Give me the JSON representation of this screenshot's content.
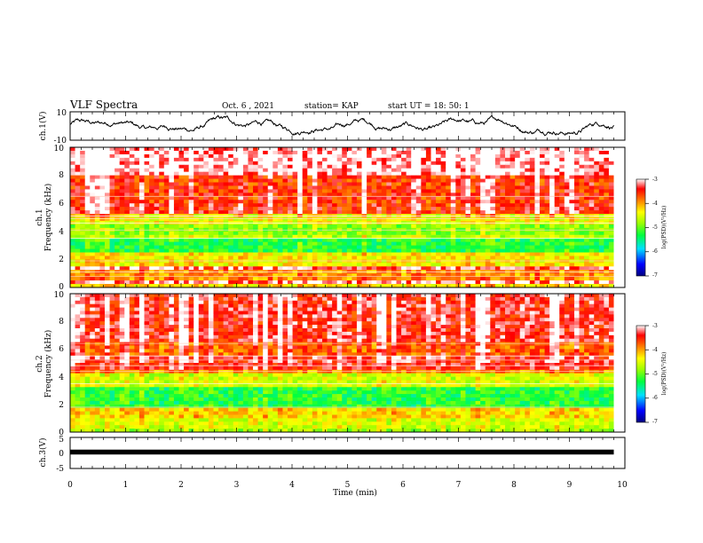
{
  "header": {
    "title": "VLF Spectra",
    "date": "Oct. 6 , 2021",
    "station": "station= KAP",
    "start": "start UT = 18: 50: 1"
  },
  "chart_data": [
    {
      "panel": "ch1-waveform",
      "type": "line",
      "ylabel": "ch.1(V)",
      "ylim": [
        -10,
        10
      ],
      "ytick_labels": [
        "10",
        "-10"
      ],
      "xlim": [
        0,
        10
      ],
      "data_extent_x": [
        0,
        9.8
      ],
      "series_color": "#000000"
    },
    {
      "panel": "ch1-spectrogram",
      "type": "heatmap",
      "ylabel_line1": "ch.1",
      "ylabel_line2": "Frequency (kHz)",
      "ylim": [
        0,
        10
      ],
      "ytick_labels": [
        "0",
        "2",
        "4",
        "6",
        "8",
        "10"
      ],
      "xlim": [
        0,
        10
      ],
      "data_extent_x": [
        0,
        9.8
      ],
      "colorbar": {
        "label": "log(PSD)(V²/Hz)",
        "range": [
          -7,
          -3
        ],
        "tick_labels": [
          "-3",
          "-4",
          "-5",
          "-6",
          "-7"
        ],
        "colors": [
          "#000080",
          "#0000ff",
          "#00e0ff",
          "#00ff40",
          "#a0ff00",
          "#ffff00",
          "#ff8000",
          "#ff0000",
          "#ffffff"
        ]
      },
      "bands_khz": [
        {
          "from": 0.0,
          "to": 0.3,
          "level": -4.3
        },
        {
          "from": 0.3,
          "to": 0.6,
          "level": -3.2
        },
        {
          "from": 0.6,
          "to": 1.2,
          "level": -4.0
        },
        {
          "from": 1.2,
          "to": 1.6,
          "level": -3.3
        },
        {
          "from": 1.6,
          "to": 2.4,
          "level": -4.4
        },
        {
          "from": 2.4,
          "to": 3.4,
          "level": -5.3
        },
        {
          "from": 3.4,
          "to": 3.8,
          "level": -4.7
        },
        {
          "from": 3.8,
          "to": 4.5,
          "level": -4.9
        },
        {
          "from": 4.5,
          "to": 5.2,
          "level": -4.5
        },
        {
          "from": 5.2,
          "to": 6.0,
          "level": -3.6
        },
        {
          "from": 6.0,
          "to": 8.0,
          "level": -3.7
        },
        {
          "from": 8.0,
          "to": 10.0,
          "level": -3.2
        }
      ],
      "tones_khz": [
        0.8,
        1.1,
        1.9,
        3.5,
        4.1,
        4.6,
        4.9,
        5.1,
        6.5
      ]
    },
    {
      "panel": "ch2-spectrogram",
      "type": "heatmap",
      "ylabel_line1": "ch.2",
      "ylabel_line2": "Frequency (kHz)",
      "ylim": [
        0,
        10
      ],
      "ytick_labels": [
        "0",
        "2",
        "4",
        "6",
        "8",
        "10"
      ],
      "xlim": [
        0,
        10
      ],
      "data_extent_x": [
        0,
        9.8
      ],
      "colorbar": {
        "label": "log(PSD)(V²/Hz)",
        "range": [
          -7,
          -3
        ],
        "tick_labels": [
          "-3",
          "-4",
          "-5",
          "-6",
          "-7"
        ],
        "colors": [
          "#000080",
          "#0000ff",
          "#00e0ff",
          "#00ff40",
          "#a0ff00",
          "#ffff00",
          "#ff8000",
          "#ff0000",
          "#ffffff"
        ]
      },
      "bands_khz": [
        {
          "from": 0.0,
          "to": 0.3,
          "level": -4.8
        },
        {
          "from": 0.3,
          "to": 1.0,
          "level": -4.6
        },
        {
          "from": 1.0,
          "to": 1.8,
          "level": -4.3
        },
        {
          "from": 1.8,
          "to": 3.2,
          "level": -5.3
        },
        {
          "from": 3.2,
          "to": 4.2,
          "level": -4.6
        },
        {
          "from": 4.2,
          "to": 4.6,
          "level": -4.0
        },
        {
          "from": 4.6,
          "to": 5.4,
          "level": -3.5
        },
        {
          "from": 5.4,
          "to": 6.4,
          "level": -3.9
        },
        {
          "from": 6.4,
          "to": 10.0,
          "level": -3.5
        }
      ],
      "tones_khz": [
        1.8,
        3.5,
        4.4,
        4.8,
        5.2,
        5.5,
        6.4
      ]
    },
    {
      "panel": "ch3-waveform",
      "type": "line",
      "ylabel": "ch.3(V)",
      "ylim": [
        -5,
        5
      ],
      "ytick_labels": [
        "5",
        "0",
        "-5"
      ],
      "xlim": [
        0,
        10
      ],
      "data_extent_x": [
        0,
        9.8
      ],
      "series_color": "#000000",
      "xlabel": "Time (min)",
      "xtick_labels": [
        "0",
        "1",
        "2",
        "3",
        "4",
        "5",
        "6",
        "7",
        "8",
        "9",
        "10"
      ]
    }
  ]
}
